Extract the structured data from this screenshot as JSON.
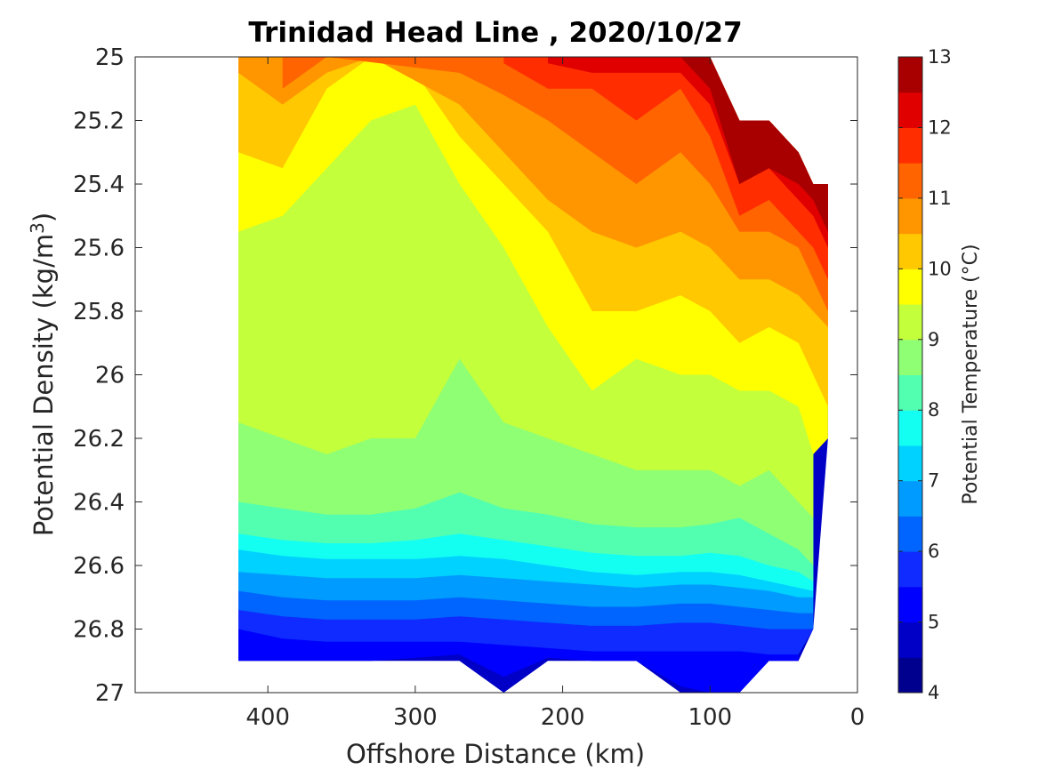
{
  "chart_data": {
    "type": "contour",
    "title": "Trinidad Head Line , 2020/10/27",
    "xlabel": "Offshore Distance (km)",
    "ylabel_main": "Potential Density (kg/m",
    "ylabel_sup": "3",
    "ylabel_close": ")",
    "colorbar_label": "Potential Temperature (°C)",
    "xlim": [
      490,
      0
    ],
    "ylim": [
      25,
      27
    ],
    "x_reversed": true,
    "y_reversed": true,
    "xticks": [
      400,
      300,
      200,
      100,
      0
    ],
    "xtick_labels": [
      "400",
      "300",
      "200",
      "100",
      "0"
    ],
    "yticks": [
      25,
      25.2,
      25.4,
      25.6,
      25.8,
      26,
      26.2,
      26.4,
      26.6,
      26.8,
      27
    ],
    "ytick_labels": [
      "25",
      "25.2",
      "25.4",
      "25.6",
      "25.8",
      "26",
      "26.2",
      "26.4",
      "26.6",
      "26.8",
      "27"
    ],
    "colorbar_ticks": [
      4,
      5,
      6,
      7,
      8,
      9,
      10,
      11,
      12,
      13
    ],
    "colorbar_tick_labels": [
      "4",
      "5",
      "6",
      "7",
      "8",
      "9",
      "10",
      "11",
      "12",
      "13"
    ],
    "levels": [
      4,
      4.5,
      5,
      5.5,
      6,
      6.5,
      7,
      7.5,
      8,
      8.5,
      9,
      9.5,
      10,
      10.5,
      11,
      11.5,
      12,
      12.5,
      13
    ],
    "colormap": [
      "#00008f",
      "#0000c7",
      "#0000ff",
      "#0f2bff",
      "#0064ff",
      "#009bff",
      "#00d2ff",
      "#13fff2",
      "#52ffb1",
      "#8fff73",
      "#c4ff3b",
      "#ffff00",
      "#ffc800",
      "#ff9600",
      "#ff6400",
      "#ff2d00",
      "#e00000",
      "#a80000"
    ],
    "station_distances_km": [
      420,
      390,
      360,
      330,
      300,
      270,
      240,
      210,
      180,
      150,
      120,
      100,
      80,
      60,
      40,
      30,
      20
    ],
    "isotherms": [
      {
        "temp": 12.5,
        "sigma": [
          null,
          null,
          null,
          null,
          null,
          null,
          null,
          null,
          25.0,
          25.0,
          25.0,
          25.1,
          25.4,
          25.35,
          25.4,
          25.45,
          25.55
        ]
      },
      {
        "temp": 12,
        "sigma": [
          null,
          null,
          null,
          null,
          null,
          null,
          null,
          25.02,
          25.05,
          25.05,
          25.05,
          25.15,
          25.4,
          25.35,
          25.45,
          25.5,
          25.6
        ]
      },
      {
        "temp": 11.5,
        "sigma": [
          null,
          null,
          null,
          null,
          null,
          null,
          25.02,
          25.1,
          25.1,
          25.2,
          25.1,
          25.25,
          25.5,
          25.45,
          25.55,
          25.6,
          25.7
        ]
      },
      {
        "temp": 11,
        "sigma": [
          null,
          25.1,
          25.0,
          null,
          null,
          25.05,
          25.12,
          25.2,
          25.3,
          25.4,
          25.3,
          25.4,
          25.55,
          25.55,
          25.6,
          25.7,
          25.8
        ]
      },
      {
        "temp": 10.5,
        "sigma": [
          25.05,
          25.15,
          25.05,
          25.0,
          null,
          25.15,
          25.3,
          25.45,
          25.55,
          25.6,
          25.55,
          25.6,
          25.7,
          25.7,
          25.75,
          25.8,
          25.85
        ]
      },
      {
        "temp": 10,
        "sigma": [
          25.3,
          25.35,
          25.1,
          25.0,
          25.05,
          25.25,
          25.4,
          25.55,
          25.8,
          25.8,
          25.75,
          25.8,
          25.9,
          25.85,
          25.9,
          26.0,
          26.1
        ]
      },
      {
        "temp": 9.5,
        "sigma": [
          25.55,
          25.5,
          25.35,
          25.2,
          25.15,
          25.4,
          25.6,
          25.85,
          26.05,
          25.95,
          26.0,
          26.0,
          26.05,
          26.05,
          26.1,
          26.25,
          26.2
        ]
      },
      {
        "temp": 9,
        "sigma": [
          26.15,
          26.2,
          26.25,
          26.2,
          26.2,
          25.95,
          26.15,
          26.2,
          26.25,
          26.3,
          26.3,
          26.3,
          26.35,
          26.3,
          26.4,
          26.45,
          null
        ]
      },
      {
        "temp": 8.5,
        "sigma": [
          26.4,
          26.42,
          26.44,
          26.44,
          26.42,
          26.37,
          26.42,
          26.44,
          26.47,
          26.48,
          26.48,
          26.47,
          26.45,
          26.5,
          26.55,
          26.6,
          null
        ]
      },
      {
        "temp": 8,
        "sigma": [
          26.5,
          26.52,
          26.53,
          26.53,
          26.52,
          26.5,
          26.52,
          26.54,
          26.56,
          26.57,
          26.57,
          26.56,
          26.57,
          26.6,
          26.62,
          26.65,
          null
        ]
      },
      {
        "temp": 7.5,
        "sigma": [
          26.55,
          26.57,
          26.58,
          26.58,
          26.58,
          26.57,
          26.58,
          26.6,
          26.62,
          26.63,
          26.62,
          26.62,
          26.63,
          26.65,
          26.67,
          26.68,
          null
        ]
      },
      {
        "temp": 7,
        "sigma": [
          26.62,
          26.63,
          26.64,
          26.64,
          26.64,
          26.63,
          26.64,
          26.65,
          26.66,
          26.67,
          26.66,
          26.66,
          26.67,
          26.68,
          26.7,
          26.7,
          null
        ]
      },
      {
        "temp": 6.5,
        "sigma": [
          26.68,
          26.7,
          26.71,
          26.71,
          26.71,
          26.7,
          26.71,
          26.72,
          26.73,
          26.73,
          26.72,
          26.72,
          26.73,
          26.74,
          26.75,
          26.75,
          null
        ]
      },
      {
        "temp": 6,
        "sigma": [
          26.74,
          26.76,
          26.77,
          26.77,
          26.77,
          26.76,
          26.77,
          26.78,
          26.79,
          26.79,
          26.78,
          26.78,
          26.79,
          26.8,
          26.8,
          26.8,
          null
        ]
      },
      {
        "temp": 5.5,
        "sigma": [
          26.8,
          26.83,
          26.84,
          26.84,
          26.84,
          26.84,
          26.85,
          26.86,
          26.87,
          26.87,
          26.87,
          26.87,
          26.87,
          26.88,
          26.88,
          26.9,
          null
        ]
      },
      {
        "temp": 5,
        "sigma": [
          26.9,
          26.9,
          26.9,
          26.9,
          26.89,
          26.88,
          26.95,
          26.89,
          26.9,
          26.9,
          26.98,
          27.0,
          27.0,
          26.9,
          26.9,
          null,
          null
        ]
      }
    ],
    "data_extent": {
      "top_sigma": [
        25.0,
        25.0,
        25.0,
        25.0,
        25.0,
        25.0,
        25.0,
        25.0,
        25.0,
        25.0,
        25.0,
        25.0,
        25.2,
        25.2,
        25.3,
        25.4,
        25.4
      ],
      "bottom_sigma": [
        26.9,
        26.9,
        26.9,
        26.9,
        26.9,
        26.9,
        27.0,
        26.9,
        26.9,
        26.9,
        27.0,
        27.0,
        27.0,
        26.9,
        26.9,
        26.8,
        26.2
      ]
    }
  }
}
